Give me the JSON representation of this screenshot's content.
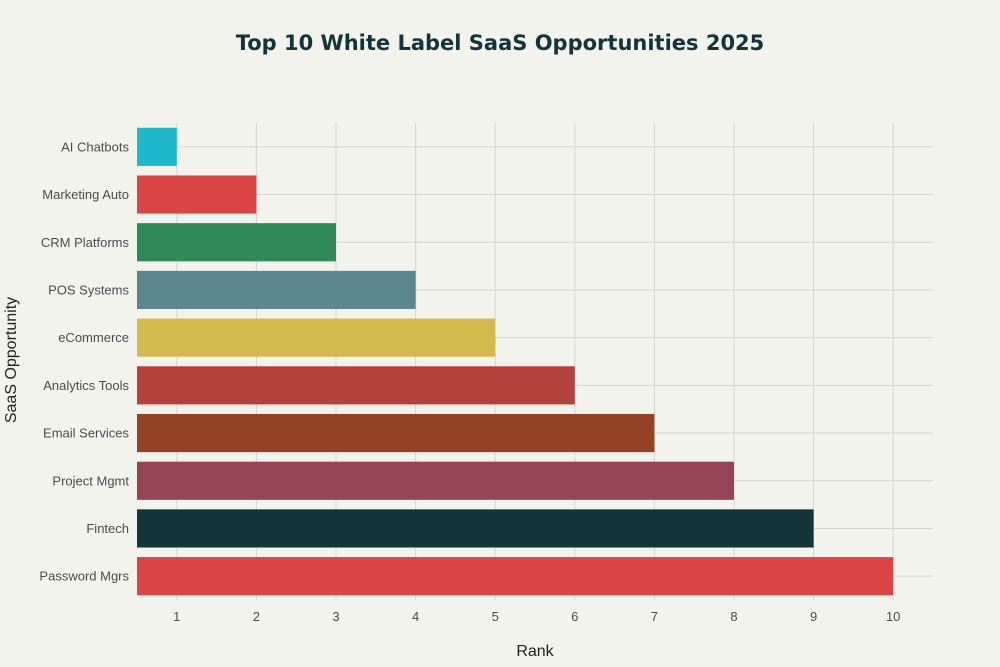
{
  "chart_data": {
    "type": "bar",
    "orientation": "horizontal",
    "title": "Top 10 White Label SaaS Opportunities 2025",
    "xlabel": "Rank",
    "ylabel": "SaaS Opportunity",
    "categories": [
      "AI Chatbots",
      "Marketing Auto",
      "CRM Platforms",
      "POS Systems",
      "eCommerce",
      "Analytics Tools",
      "Email Services",
      "Project Mgmt",
      "Fintech",
      "Password Mgrs"
    ],
    "values": [
      1,
      2,
      3,
      4,
      5,
      6,
      7,
      8,
      9,
      10
    ],
    "colors": [
      "#1fb8cd",
      "#db4545",
      "#2e8b57",
      "#5d878f",
      "#d2ba4c",
      "#b4413c",
      "#964325",
      "#944454",
      "#13343b",
      "#db4545"
    ],
    "xticks": [
      "1",
      "2",
      "3",
      "4",
      "5",
      "6",
      "7",
      "8",
      "9",
      "10"
    ],
    "xlim": [
      0.5,
      10.5
    ],
    "grid": true,
    "background": "#f3f3ee"
  }
}
